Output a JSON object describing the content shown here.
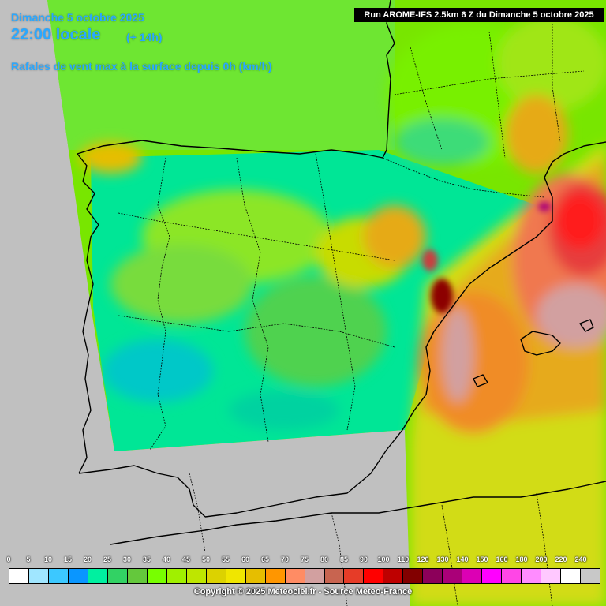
{
  "header": {
    "date": "Dimanche 5 octobre 2025",
    "time": "22:00 locale",
    "offset": "(+ 14h)",
    "parameter": "Rafales de vent max à la surface depuis 0h (km/h)",
    "run": "Run AROME-IFS 2.5km 6 Z du Dimanche 5 octobre 2025"
  },
  "legend": {
    "ticks": [
      "0",
      "5",
      "10",
      "15",
      "20",
      "25",
      "30",
      "35",
      "40",
      "45",
      "50",
      "55",
      "60",
      "65",
      "70",
      "75",
      "80",
      "85",
      "90",
      "100",
      "110",
      "120",
      "130",
      "140",
      "150",
      "160",
      "180",
      "200",
      "220",
      "240"
    ],
    "colors": [
      "#ffffff",
      "#a0e6ff",
      "#3cc8ff",
      "#0a96ff",
      "#00f0a0",
      "#32d264",
      "#64c83c",
      "#78ff00",
      "#a0f000",
      "#bee600",
      "#dcd200",
      "#f0e600",
      "#e6be00",
      "#ff9600",
      "#ff8c64",
      "#d2a0a0",
      "#c86450",
      "#e63c28",
      "#ff0000",
      "#be0000",
      "#820000",
      "#8c005a",
      "#aa0078",
      "#dc00b4",
      "#ff00ff",
      "#ff46e6",
      "#ff8cff",
      "#ffc8ff",
      "#ffffff",
      "#c8c8c8"
    ]
  },
  "copyright": "Copyright © 2025 Meteociel.fr - Source Meteo-France",
  "colors": {
    "title": "#2aa8ff",
    "background": "#c0c0c0"
  }
}
